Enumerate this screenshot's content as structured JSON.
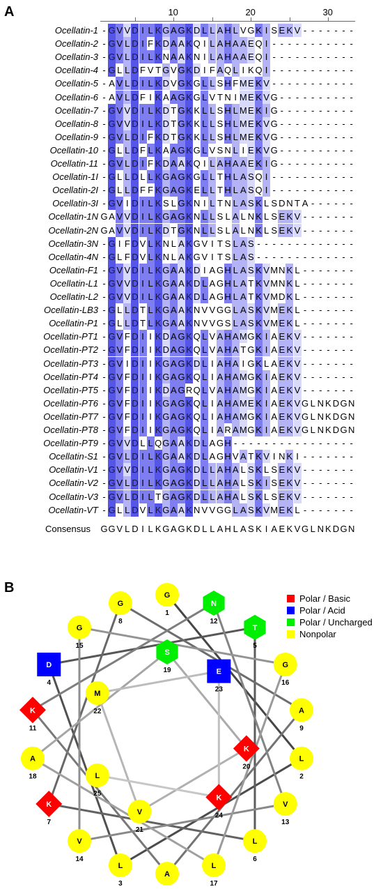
{
  "panel_a": {
    "label": "A",
    "ruler_ticks": [
      "10",
      "20",
      "30"
    ],
    "sequences": [
      {
        "name": "Ocellatin-1",
        "seq": "-GVVDILKGAGKDLLAHLVGKISEKV-------"
      },
      {
        "name": "Ocellatin-2",
        "seq": "-GVLDIFKDAAKQILAHAAEQI----------"
      },
      {
        "name": "Ocellatin-3",
        "seq": "-GVLDILKNAAKNILAHAAEQI----------"
      },
      {
        "name": "Ocellatin-4",
        "seq": "-GLLDFVTGVGKDIFAQLIKQI----------"
      },
      {
        "name": "Ocellatin-5",
        "seq": "-AVLDILKDVGKGLLSHFMEKV----------"
      },
      {
        "name": "Ocellatin-6",
        "seq": "-AVLDFIKAAGKGLVTNIMEKVG---------"
      },
      {
        "name": "Ocellatin-7",
        "seq": "-GVVDILKDTGKKLLSHLMEKIG---------"
      },
      {
        "name": "Ocellatin-8",
        "seq": "-GVVDILKDTGKKLLSHLMEKVG---------"
      },
      {
        "name": "Ocellatin-9",
        "seq": "-GVLDIFKDTGKKLLSHLMEKVG---------"
      },
      {
        "name": "Ocellatin-10",
        "seq": "-GLLDFLKAAGKGLVSNLIEKVG---------"
      },
      {
        "name": "Ocellatin-11",
        "seq": "-GVLDIFKDAAKQILAHAAEKIG---------"
      },
      {
        "name": "Ocellatin-1I",
        "seq": "-GLLDLLKGAGKGLLTHLASQI----------"
      },
      {
        "name": "Ocellatin-2I",
        "seq": "-GLLDFFKGAGKELLTHLASQI----------"
      },
      {
        "name": "Ocellatin-3I",
        "seq": "-GVIDILKSLGKNILTNLASKLSDNTA-----"
      },
      {
        "name": "Ocellatin-1N",
        "seq": "GAVVDILKGAGKNLLSLALNKLSEKV------"
      },
      {
        "name": "Ocellatin-2N",
        "seq": "GAVVDILKDTGKNLLSLALNKLSEKV------"
      },
      {
        "name": "Ocellatin-3N",
        "seq": "-GIFDVLKNLAKGVITSLAS------------"
      },
      {
        "name": "Ocellatin-4N",
        "seq": "-GLFDVLKNLAKGVITSLAS------------"
      },
      {
        "name": "Ocellatin-F1",
        "seq": "-GVVDILKGAAKDIAGHLASKVMNKL------"
      },
      {
        "name": "Ocellatin-L1",
        "seq": "-GVVDILKGAAKDLAGHLATKVMNKL------"
      },
      {
        "name": "Ocellatin-L2",
        "seq": "-GVVDILKGAAKDLAGHLATKVMDKL------"
      },
      {
        "name": "Ocellatin-LB3",
        "seq": "-GLLDTLKGAAKNVVGGLASKVMEKL------"
      },
      {
        "name": "Ocellatin-P1",
        "seq": "-GLLDTLKGAAKNVVGSLASKVMEKL------"
      },
      {
        "name": "Ocellatin-PT1",
        "seq": "-GVFDIIKDAGKQLVAHAMGKIAEKV------"
      },
      {
        "name": "Ocellatin-PT2",
        "seq": "-GVFDIIKDAGKQLVAHATGKIAEKV------"
      },
      {
        "name": "Ocellatin-PT3",
        "seq": "-GVIDIIKGAGKDLIAHAIGKLAEKV------"
      },
      {
        "name": "Ocellatin-PT4",
        "seq": "-GVFDIIKGAGKQLIAHAMGKIAEKV------"
      },
      {
        "name": "Ocellatin-PT5",
        "seq": "-GVFDIIKDAGRQLVAHAMGKIAEKV------"
      },
      {
        "name": "Ocellatin-PT6",
        "seq": "-GVFDIIKGAGKQLIAHAMEKIAEKVGLNKDGN"
      },
      {
        "name": "Ocellatin-PT7",
        "seq": "-GVFDIIKGAGKQLIAHAMGKIAEKVGLNKDGN"
      },
      {
        "name": "Ocellatin-PT8",
        "seq": "-GVFDIIKGAGKQLIARAMGKIAEKVGLNKDGN"
      },
      {
        "name": "Ocellatin-PT9",
        "seq": "-GVVDLLQGAAKDLAGH----------------"
      },
      {
        "name": "Ocellatin-S1",
        "seq": "-GVLDILKGAAKDLAGHVATKVINKI------"
      },
      {
        "name": "Ocellatin-V1",
        "seq": "-GVVDILKGAGKDLLAHALSKLSEKV------"
      },
      {
        "name": "Ocellatin-V2",
        "seq": "-GVLDILKGAGKDLLAHALSKISEKV------"
      },
      {
        "name": "Ocellatin-V3",
        "seq": "-GVLDILTGAGKDLLAHALSKLSEKV------"
      },
      {
        "name": "Ocellatin-VT",
        "seq": "-GLLDVLKGAAKNVVGGLASKVMEKL------"
      }
    ],
    "consensus_label": "Consensus",
    "consensus": "GGVLDILKGAGKDLLAHLASKIAEKVGLNKDGN",
    "colors": {
      "dark": "#5555e8",
      "mid": "#7e7ef0",
      "light": "#b3b3f5",
      "pale": "#d9d9fa"
    }
  },
  "panel_b": {
    "label": "B",
    "legend": [
      {
        "label": "Polar / Basic",
        "color": "#ff0000"
      },
      {
        "label": "Polar / Acid",
        "color": "#0000ff"
      },
      {
        "label": "Polar / Uncharged",
        "color": "#00ee00"
      },
      {
        "label": "Nonpolar",
        "color": "#ffff00"
      }
    ],
    "residues": [
      {
        "n": "1",
        "aa": "G",
        "type": "nonpolar"
      },
      {
        "n": "2",
        "aa": "L",
        "type": "nonpolar"
      },
      {
        "n": "3",
        "aa": "L",
        "type": "nonpolar"
      },
      {
        "n": "4",
        "aa": "D",
        "type": "acid"
      },
      {
        "n": "5",
        "aa": "T",
        "type": "uncharged"
      },
      {
        "n": "6",
        "aa": "L",
        "type": "nonpolar"
      },
      {
        "n": "7",
        "aa": "K",
        "type": "basic"
      },
      {
        "n": "8",
        "aa": "G",
        "type": "nonpolar"
      },
      {
        "n": "9",
        "aa": "A",
        "type": "nonpolar"
      },
      {
        "n": "10",
        "aa": "A",
        "type": "nonpolar"
      },
      {
        "n": "11",
        "aa": "K",
        "type": "basic"
      },
      {
        "n": "12",
        "aa": "N",
        "type": "uncharged"
      },
      {
        "n": "13",
        "aa": "V",
        "type": "nonpolar"
      },
      {
        "n": "14",
        "aa": "V",
        "type": "nonpolar"
      },
      {
        "n": "15",
        "aa": "G",
        "type": "nonpolar"
      },
      {
        "n": "16",
        "aa": "G",
        "type": "nonpolar"
      },
      {
        "n": "17",
        "aa": "L",
        "type": "nonpolar"
      },
      {
        "n": "18",
        "aa": "A",
        "type": "nonpolar"
      },
      {
        "n": "19",
        "aa": "S",
        "type": "uncharged"
      },
      {
        "n": "20",
        "aa": "K",
        "type": "basic"
      },
      {
        "n": "21",
        "aa": "V",
        "type": "nonpolar"
      },
      {
        "n": "22",
        "aa": "M",
        "type": "nonpolar"
      },
      {
        "n": "23",
        "aa": "E",
        "type": "acid"
      },
      {
        "n": "24",
        "aa": "K",
        "type": "basic"
      },
      {
        "n": "25",
        "aa": "L",
        "type": "nonpolar"
      }
    ]
  }
}
